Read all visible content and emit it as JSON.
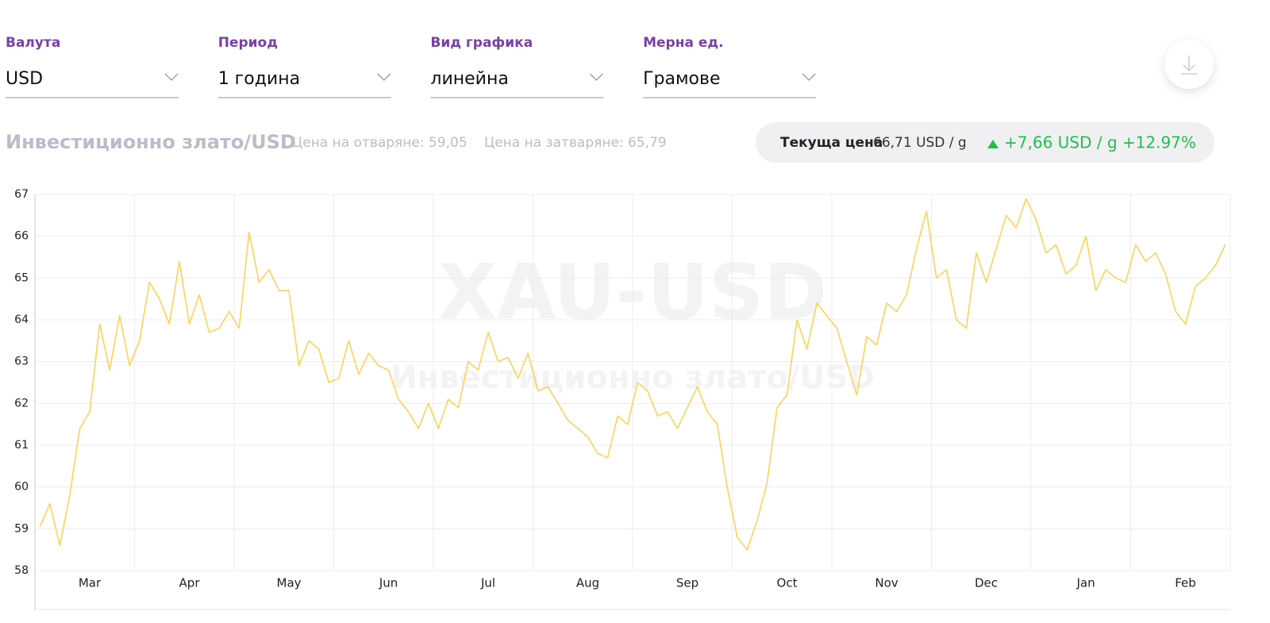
{
  "controls": [
    {
      "label": "Валута",
      "value": "USD"
    },
    {
      "label": "Период",
      "value": "1 година"
    },
    {
      "label": "Вид графика",
      "value": "линейна"
    },
    {
      "label": "Мерна ед.",
      "value": "Грамове"
    }
  ],
  "header": {
    "title": "Инвестиционно злато/USD",
    "open": "Цена на отваряне: 59,05",
    "close": "Цена на затваряне: 65,79",
    "current_label": "Текуща цена",
    "current_value": "66,71 USD / g",
    "change": "+7,66 USD / g +12.97%"
  },
  "chart_data": {
    "type": "line",
    "watermark": "XAU-USD",
    "watermark_subtitle": "Инвестиционно злато/USD",
    "categories": [
      null,
      null,
      null,
      null,
      null,
      "Mar",
      null,
      null,
      null,
      null,
      null,
      null,
      null,
      null,
      null,
      "Apr",
      null,
      null,
      null,
      null,
      null,
      null,
      null,
      null,
      null,
      "May",
      null,
      null,
      null,
      null,
      null,
      null,
      null,
      null,
      null,
      "Jun",
      null,
      null,
      null,
      null,
      null,
      null,
      null,
      null,
      null,
      "Jul",
      null,
      null,
      null,
      null,
      null,
      null,
      null,
      null,
      null,
      "Aug",
      null,
      null,
      null,
      null,
      null,
      null,
      null,
      null,
      null,
      "Sep",
      null,
      null,
      null,
      null,
      null,
      null,
      null,
      null,
      null,
      "Oct",
      null,
      null,
      null,
      null,
      null,
      null,
      null,
      null,
      null,
      "Nov",
      null,
      null,
      null,
      null,
      null,
      null,
      null,
      null,
      null,
      "Dec",
      null,
      null,
      null,
      null,
      null,
      null,
      null,
      null,
      null,
      "Jan",
      null,
      null,
      null,
      null,
      null,
      null,
      null,
      null,
      null,
      "Feb",
      null,
      null,
      null,
      null
    ],
    "series": [
      {
        "name": "XAU-USD",
        "color": "#fcd25a",
        "values": [
          59.05,
          59.6,
          58.6,
          59.8,
          61.4,
          61.8,
          63.9,
          62.8,
          64.1,
          62.9,
          63.5,
          64.9,
          64.5,
          63.9,
          65.4,
          63.9,
          64.6,
          63.7,
          63.8,
          64.2,
          63.8,
          66.1,
          64.9,
          65.2,
          64.7,
          64.7,
          62.9,
          63.5,
          63.3,
          62.5,
          62.6,
          63.5,
          62.7,
          63.2,
          62.9,
          62.8,
          62.1,
          61.8,
          61.4,
          62.0,
          61.4,
          62.1,
          61.9,
          63.0,
          62.8,
          63.7,
          63.0,
          63.1,
          62.6,
          63.2,
          62.3,
          62.4,
          62.0,
          61.6,
          61.4,
          61.2,
          60.8,
          60.7,
          61.7,
          61.5,
          62.5,
          62.3,
          61.7,
          61.8,
          61.4,
          61.9,
          62.4,
          61.8,
          61.5,
          60.0,
          58.8,
          58.5,
          59.2,
          60.1,
          61.9,
          62.2,
          64.0,
          63.3,
          64.4,
          64.1,
          63.8,
          63.0,
          62.2,
          63.6,
          63.4,
          64.4,
          64.2,
          64.6,
          65.7,
          66.6,
          65.0,
          65.2,
          64.0,
          63.8,
          65.6,
          64.9,
          65.7,
          66.5,
          66.2,
          66.9,
          66.4,
          65.6,
          65.8,
          65.1,
          65.3,
          66.0,
          64.7,
          65.2,
          65.0,
          64.9,
          65.8,
          65.4,
          65.6,
          65.1,
          64.2,
          63.9,
          64.8,
          65.0,
          65.3,
          65.8
        ]
      }
    ],
    "ylim": [
      58,
      67
    ],
    "yticks": [
      58,
      59,
      60,
      61,
      62,
      63,
      64,
      65,
      66,
      67
    ],
    "grid": true
  }
}
